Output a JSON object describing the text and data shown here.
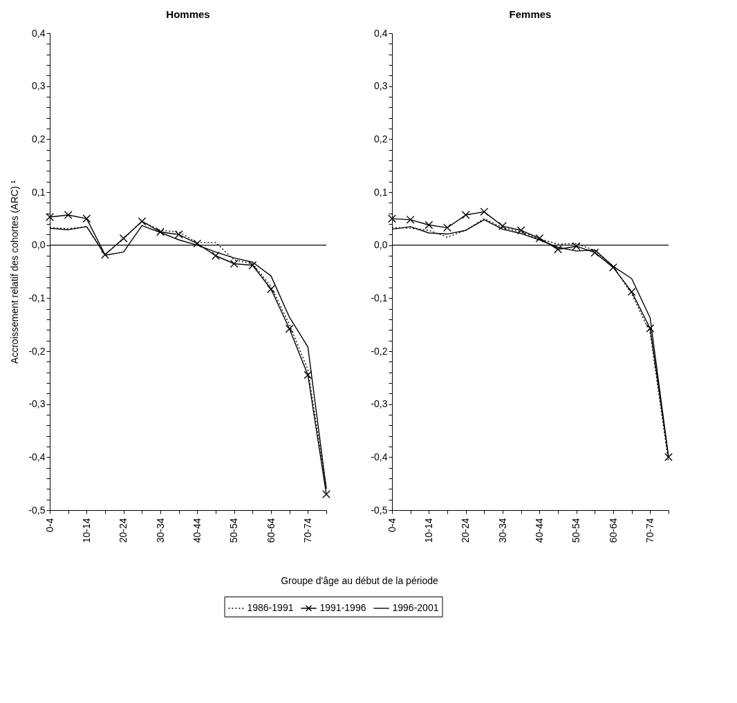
{
  "chart_data": [
    {
      "type": "line",
      "title": "Hommes",
      "xlabel": "Groupe d'âge au début de la période",
      "ylabel": "Accroissement relatif des cohortes (ARC) ¹",
      "categories": [
        "0-4",
        null,
        "10-14",
        null,
        "20-24",
        null,
        "30-34",
        null,
        "40-44",
        null,
        "50-54",
        null,
        "60-64",
        null,
        "70-74",
        null
      ],
      "series": [
        {
          "name": "1986-1991",
          "color": "#000000",
          "line_style": "dotted",
          "marker": "none",
          "values": [
            0.033,
            0.031,
            0.035,
            -0.017,
            0.012,
            0.045,
            0.028,
            0.025,
            0.005,
            0.005,
            -0.028,
            -0.035,
            -0.078,
            -0.15,
            -0.235,
            -0.46
          ]
        },
        {
          "name": "1991-1996",
          "color": "#000000",
          "line_style": "solid",
          "marker": "cross",
          "values": [
            0.053,
            0.057,
            0.05,
            -0.018,
            0.013,
            0.045,
            0.025,
            0.02,
            0.003,
            -0.02,
            -0.035,
            -0.038,
            -0.083,
            -0.158,
            -0.245,
            -0.47
          ]
        },
        {
          "name": "1996-2001",
          "color": "#000000",
          "line_style": "solid",
          "marker": "none",
          "values": [
            0.032,
            0.029,
            0.035,
            -0.019,
            -0.013,
            0.037,
            0.024,
            0.01,
            0.0,
            -0.013,
            -0.024,
            -0.032,
            -0.058,
            -0.136,
            -0.192,
            -0.46
          ]
        }
      ],
      "ylim": [
        -0.5,
        0.4
      ],
      "yticks": [
        {
          "value": -0.5,
          "label": "-0,5"
        },
        {
          "value": -0.48,
          "label": null
        },
        {
          "value": -0.46,
          "label": null
        },
        {
          "value": -0.44,
          "label": null
        },
        {
          "value": -0.42,
          "label": null
        },
        {
          "value": -0.4,
          "label": "-0,4"
        },
        {
          "value": -0.38,
          "label": null
        },
        {
          "value": -0.36,
          "label": null
        },
        {
          "value": -0.34,
          "label": null
        },
        {
          "value": -0.32,
          "label": null
        },
        {
          "value": -0.3,
          "label": "-0,3"
        },
        {
          "value": -0.28,
          "label": null
        },
        {
          "value": -0.26,
          "label": null
        },
        {
          "value": -0.24,
          "label": null
        },
        {
          "value": -0.22,
          "label": null
        },
        {
          "value": -0.2,
          "label": "-0,2"
        },
        {
          "value": -0.18,
          "label": null
        },
        {
          "value": -0.16,
          "label": null
        },
        {
          "value": -0.14,
          "label": null
        },
        {
          "value": -0.12,
          "label": null
        },
        {
          "value": -0.1,
          "label": "-0,1"
        },
        {
          "value": -0.08,
          "label": null
        },
        {
          "value": -0.06,
          "label": null
        },
        {
          "value": -0.04,
          "label": null
        },
        {
          "value": -0.02,
          "label": null
        },
        {
          "value": 0,
          "label": "0,0"
        },
        {
          "value": 0.02,
          "label": null
        },
        {
          "value": 0.04,
          "label": null
        },
        {
          "value": 0.06,
          "label": null
        },
        {
          "value": 0.08,
          "label": null
        },
        {
          "value": 0.1,
          "label": "0,1"
        },
        {
          "value": 0.12,
          "label": null
        },
        {
          "value": 0.14,
          "label": null
        },
        {
          "value": 0.16,
          "label": null
        },
        {
          "value": 0.18,
          "label": null
        },
        {
          "value": 0.2,
          "label": "0,2"
        },
        {
          "value": 0.22,
          "label": null
        },
        {
          "value": 0.24,
          "label": null
        },
        {
          "value": 0.26,
          "label": null
        },
        {
          "value": 0.28,
          "label": null
        },
        {
          "value": 0.3,
          "label": "0,3"
        },
        {
          "value": 0.32,
          "label": null
        },
        {
          "value": 0.34,
          "label": null
        },
        {
          "value": 0.36,
          "label": null
        },
        {
          "value": 0.38,
          "label": null
        },
        {
          "value": 0.4,
          "label": "0,4"
        }
      ],
      "ref_lines": [
        {
          "axis": "y",
          "value": 0,
          "color": "#000000",
          "line_style": "solid"
        }
      ],
      "legend": "bottom",
      "grid": false
    },
    {
      "type": "line",
      "title": "Femmes",
      "categories": [
        "0-4",
        null,
        "10-14",
        null,
        "20-24",
        null,
        "30-34",
        null,
        "40-44",
        null,
        "50-54",
        null,
        "60-64",
        null,
        "70-74",
        null
      ],
      "series": [
        {
          "color": "#000000",
          "line_style": "dotted",
          "marker": "none",
          "values": [
            0.033,
            0.032,
            0.028,
            0.015,
            0.028,
            0.05,
            0.033,
            0.025,
            0.012,
            0.002,
            0.003,
            -0.01,
            -0.04,
            -0.092,
            -0.165,
            -0.41
          ]
        },
        {
          "color": "#000000",
          "line_style": "solid",
          "marker": "cross",
          "values": [
            0.05,
            0.048,
            0.038,
            0.033,
            0.057,
            0.063,
            0.036,
            0.028,
            0.013,
            -0.008,
            -0.002,
            -0.014,
            -0.042,
            -0.088,
            -0.157,
            -0.4
          ]
        },
        {
          "color": "#000000",
          "line_style": "solid",
          "marker": "none",
          "values": [
            0.03,
            0.035,
            0.023,
            0.021,
            0.028,
            0.048,
            0.03,
            0.022,
            0.01,
            -0.004,
            -0.011,
            -0.009,
            -0.04,
            -0.063,
            -0.137,
            -0.4
          ]
        }
      ],
      "ylim": [
        -0.5,
        0.4
      ],
      "yticks": [
        {
          "value": -0.5,
          "label": "-0,5"
        },
        {
          "value": -0.48,
          "label": null
        },
        {
          "value": -0.46,
          "label": null
        },
        {
          "value": -0.44,
          "label": null
        },
        {
          "value": -0.42,
          "label": null
        },
        {
          "value": -0.4,
          "label": "-0,4"
        },
        {
          "value": -0.38,
          "label": null
        },
        {
          "value": -0.36,
          "label": null
        },
        {
          "value": -0.34,
          "label": null
        },
        {
          "value": -0.32,
          "label": null
        },
        {
          "value": -0.3,
          "label": "-0,3"
        },
        {
          "value": -0.28,
          "label": null
        },
        {
          "value": -0.26,
          "label": null
        },
        {
          "value": -0.24,
          "label": null
        },
        {
          "value": -0.22,
          "label": null
        },
        {
          "value": -0.2,
          "label": "-0,2"
        },
        {
          "value": -0.18,
          "label": null
        },
        {
          "value": -0.16,
          "label": null
        },
        {
          "value": -0.14,
          "label": null
        },
        {
          "value": -0.12,
          "label": null
        },
        {
          "value": -0.1,
          "label": "-0,1"
        },
        {
          "value": -0.08,
          "label": null
        },
        {
          "value": -0.06,
          "label": null
        },
        {
          "value": -0.04,
          "label": null
        },
        {
          "value": -0.02,
          "label": null
        },
        {
          "value": 0,
          "label": "0,0"
        },
        {
          "value": 0.02,
          "label": null
        },
        {
          "value": 0.04,
          "label": null
        },
        {
          "value": 0.06,
          "label": null
        },
        {
          "value": 0.08,
          "label": null
        },
        {
          "value": 0.1,
          "label": "0,1"
        },
        {
          "value": 0.12,
          "label": null
        },
        {
          "value": 0.14,
          "label": null
        },
        {
          "value": 0.16,
          "label": null
        },
        {
          "value": 0.18,
          "label": null
        },
        {
          "value": 0.2,
          "label": "0,2"
        },
        {
          "value": 0.22,
          "label": null
        },
        {
          "value": 0.24,
          "label": null
        },
        {
          "value": 0.26,
          "label": null
        },
        {
          "value": 0.28,
          "label": null
        },
        {
          "value": 0.3,
          "label": "0,3"
        },
        {
          "value": 0.32,
          "label": null
        },
        {
          "value": 0.34,
          "label": null
        },
        {
          "value": 0.36,
          "label": null
        },
        {
          "value": 0.38,
          "label": null
        },
        {
          "value": 0.4,
          "label": "0,4"
        }
      ],
      "ref_lines": [
        {
          "axis": "y",
          "value": 0,
          "color": "#000000",
          "line_style": "solid"
        }
      ],
      "grid": false
    }
  ]
}
